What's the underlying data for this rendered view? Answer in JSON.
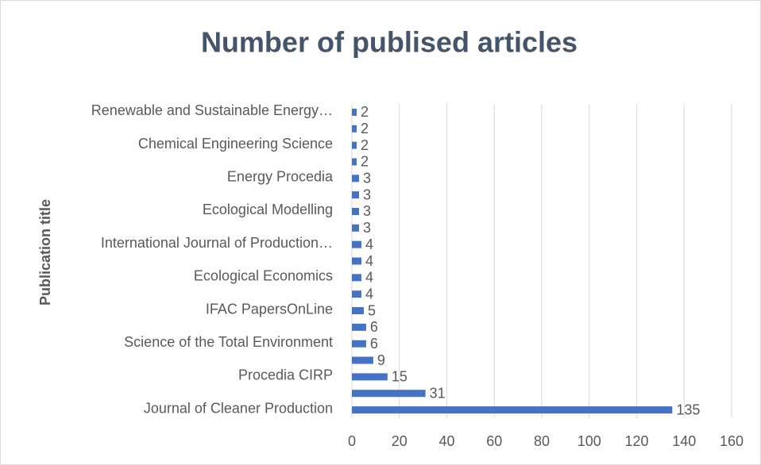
{
  "chart_data": {
    "type": "bar",
    "orientation": "horizontal",
    "title": "Number of publised articles",
    "y_label": "Publication title",
    "categories": [
      "Journal of Cleaner Production",
      null,
      "Procedia CIRP",
      null,
      "Science of the Total Environment",
      null,
      "IFAC PapersOnLine",
      null,
      "Ecological Economics",
      null,
      "International Journal of Production…",
      null,
      "Ecological Modelling",
      null,
      "Energy Procedia",
      null,
      "Chemical Engineering Science",
      null,
      "Renewable and Sustainable Energy…"
    ],
    "values": [
      135,
      31,
      15,
      9,
      6,
      6,
      5,
      4,
      4,
      4,
      4,
      3,
      3,
      3,
      3,
      2,
      2,
      2,
      2
    ],
    "color": "#4472c4",
    "xlim": [
      0,
      160
    ],
    "xticks": [
      0,
      20,
      40,
      60,
      80,
      100,
      120,
      140,
      160
    ],
    "grid": true
  }
}
